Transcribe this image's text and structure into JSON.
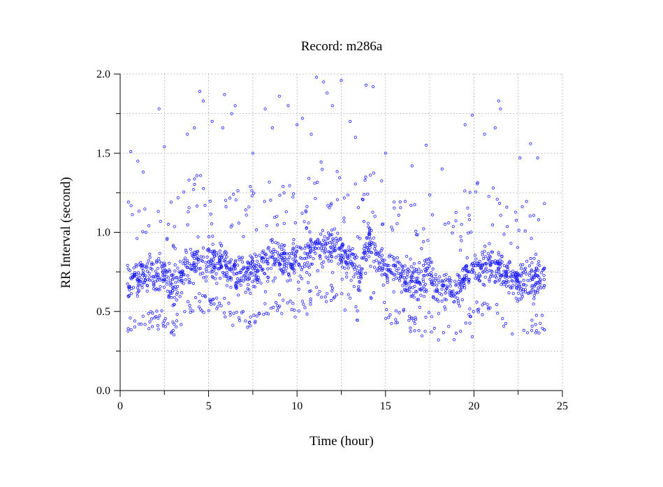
{
  "chart_data": {
    "type": "scatter",
    "title": "Record:  m286a",
    "xlabel": "Time (hour)",
    "ylabel": "RR Interval (second)",
    "xlim": [
      0,
      25
    ],
    "ylim": [
      0.0,
      2.0
    ],
    "x_ticks": [
      0,
      5,
      10,
      15,
      20,
      25
    ],
    "x_tick_labels": [
      "0",
      "5",
      "10",
      "15",
      "20",
      "25"
    ],
    "y_ticks": [
      0.0,
      0.5,
      1.0,
      1.5,
      2.0
    ],
    "y_tick_labels": [
      "0.0",
      "0.5",
      "1.0",
      "1.5",
      "2.0"
    ],
    "grid": true,
    "marker": "open-circle",
    "color": "#1a1aff",
    "time_range_hours": [
      0.4,
      24.0
    ],
    "trend": [
      {
        "x": 0.4,
        "y": 0.7
      },
      {
        "x": 1.0,
        "y": 0.7
      },
      {
        "x": 1.5,
        "y": 0.73
      },
      {
        "x": 2.0,
        "y": 0.72
      },
      {
        "x": 2.5,
        "y": 0.74
      },
      {
        "x": 3.0,
        "y": 0.66
      },
      {
        "x": 3.5,
        "y": 0.76
      },
      {
        "x": 4.0,
        "y": 0.8
      },
      {
        "x": 4.5,
        "y": 0.84
      },
      {
        "x": 5.0,
        "y": 0.82
      },
      {
        "x": 5.5,
        "y": 0.82
      },
      {
        "x": 6.0,
        "y": 0.8
      },
      {
        "x": 6.5,
        "y": 0.72
      },
      {
        "x": 7.0,
        "y": 0.73
      },
      {
        "x": 7.5,
        "y": 0.75
      },
      {
        "x": 8.0,
        "y": 0.79
      },
      {
        "x": 8.5,
        "y": 0.82
      },
      {
        "x": 9.0,
        "y": 0.83
      },
      {
        "x": 9.5,
        "y": 0.8
      },
      {
        "x": 10.0,
        "y": 0.8
      },
      {
        "x": 10.5,
        "y": 0.8
      },
      {
        "x": 11.0,
        "y": 0.92
      },
      {
        "x": 11.5,
        "y": 0.89
      },
      {
        "x": 12.0,
        "y": 0.9
      },
      {
        "x": 12.5,
        "y": 0.86
      },
      {
        "x": 13.0,
        "y": 0.82
      },
      {
        "x": 13.5,
        "y": 0.72
      },
      {
        "x": 14.0,
        "y": 0.96
      },
      {
        "x": 14.5,
        "y": 0.83
      },
      {
        "x": 15.0,
        "y": 0.78
      },
      {
        "x": 15.5,
        "y": 0.75
      },
      {
        "x": 16.0,
        "y": 0.74
      },
      {
        "x": 16.5,
        "y": 0.7
      },
      {
        "x": 17.0,
        "y": 0.67
      },
      {
        "x": 17.5,
        "y": 0.76
      },
      {
        "x": 18.0,
        "y": 0.62
      },
      {
        "x": 18.5,
        "y": 0.66
      },
      {
        "x": 19.0,
        "y": 0.62
      },
      {
        "x": 19.5,
        "y": 0.72
      },
      {
        "x": 20.0,
        "y": 0.8
      },
      {
        "x": 20.5,
        "y": 0.78
      },
      {
        "x": 21.0,
        "y": 0.8
      },
      {
        "x": 21.5,
        "y": 0.77
      },
      {
        "x": 22.0,
        "y": 0.7
      },
      {
        "x": 22.5,
        "y": 0.68
      },
      {
        "x": 23.0,
        "y": 0.7
      },
      {
        "x": 23.5,
        "y": 0.7
      },
      {
        "x": 24.0,
        "y": 0.7
      }
    ],
    "outliers": [
      {
        "x": 0.6,
        "y": 1.51
      },
      {
        "x": 1.0,
        "y": 1.45
      },
      {
        "x": 1.3,
        "y": 1.38
      },
      {
        "x": 2.2,
        "y": 1.78
      },
      {
        "x": 2.5,
        "y": 1.54
      },
      {
        "x": 3.8,
        "y": 1.62
      },
      {
        "x": 4.2,
        "y": 1.66
      },
      {
        "x": 4.5,
        "y": 1.89
      },
      {
        "x": 4.7,
        "y": 1.83
      },
      {
        "x": 5.2,
        "y": 1.7
      },
      {
        "x": 5.8,
        "y": 1.66
      },
      {
        "x": 5.9,
        "y": 1.87
      },
      {
        "x": 6.3,
        "y": 1.75
      },
      {
        "x": 6.5,
        "y": 1.8
      },
      {
        "x": 7.5,
        "y": 1.5
      },
      {
        "x": 8.2,
        "y": 1.78
      },
      {
        "x": 8.6,
        "y": 1.66
      },
      {
        "x": 9.0,
        "y": 1.86
      },
      {
        "x": 9.5,
        "y": 1.8
      },
      {
        "x": 10.0,
        "y": 1.68
      },
      {
        "x": 10.3,
        "y": 1.72
      },
      {
        "x": 10.8,
        "y": 1.62
      },
      {
        "x": 11.1,
        "y": 1.98
      },
      {
        "x": 11.5,
        "y": 1.95
      },
      {
        "x": 11.7,
        "y": 1.88
      },
      {
        "x": 12.0,
        "y": 1.8
      },
      {
        "x": 12.5,
        "y": 1.96
      },
      {
        "x": 13.0,
        "y": 1.7
      },
      {
        "x": 13.3,
        "y": 1.6
      },
      {
        "x": 13.9,
        "y": 1.93
      },
      {
        "x": 14.3,
        "y": 1.92
      },
      {
        "x": 15.0,
        "y": 1.5
      },
      {
        "x": 16.5,
        "y": 1.42
      },
      {
        "x": 17.3,
        "y": 1.55
      },
      {
        "x": 18.2,
        "y": 1.4
      },
      {
        "x": 19.5,
        "y": 1.68
      },
      {
        "x": 19.9,
        "y": 1.74
      },
      {
        "x": 20.6,
        "y": 1.62
      },
      {
        "x": 21.2,
        "y": 1.66
      },
      {
        "x": 21.4,
        "y": 1.83
      },
      {
        "x": 21.5,
        "y": 1.78
      },
      {
        "x": 22.6,
        "y": 1.47
      },
      {
        "x": 23.2,
        "y": 1.56
      },
      {
        "x": 23.6,
        "y": 1.47
      },
      {
        "x": 19.9,
        "y": 0.34
      },
      {
        "x": 3.0,
        "y": 0.38
      },
      {
        "x": 7.3,
        "y": 0.43
      },
      {
        "x": 17.6,
        "y": 0.37
      }
    ]
  }
}
